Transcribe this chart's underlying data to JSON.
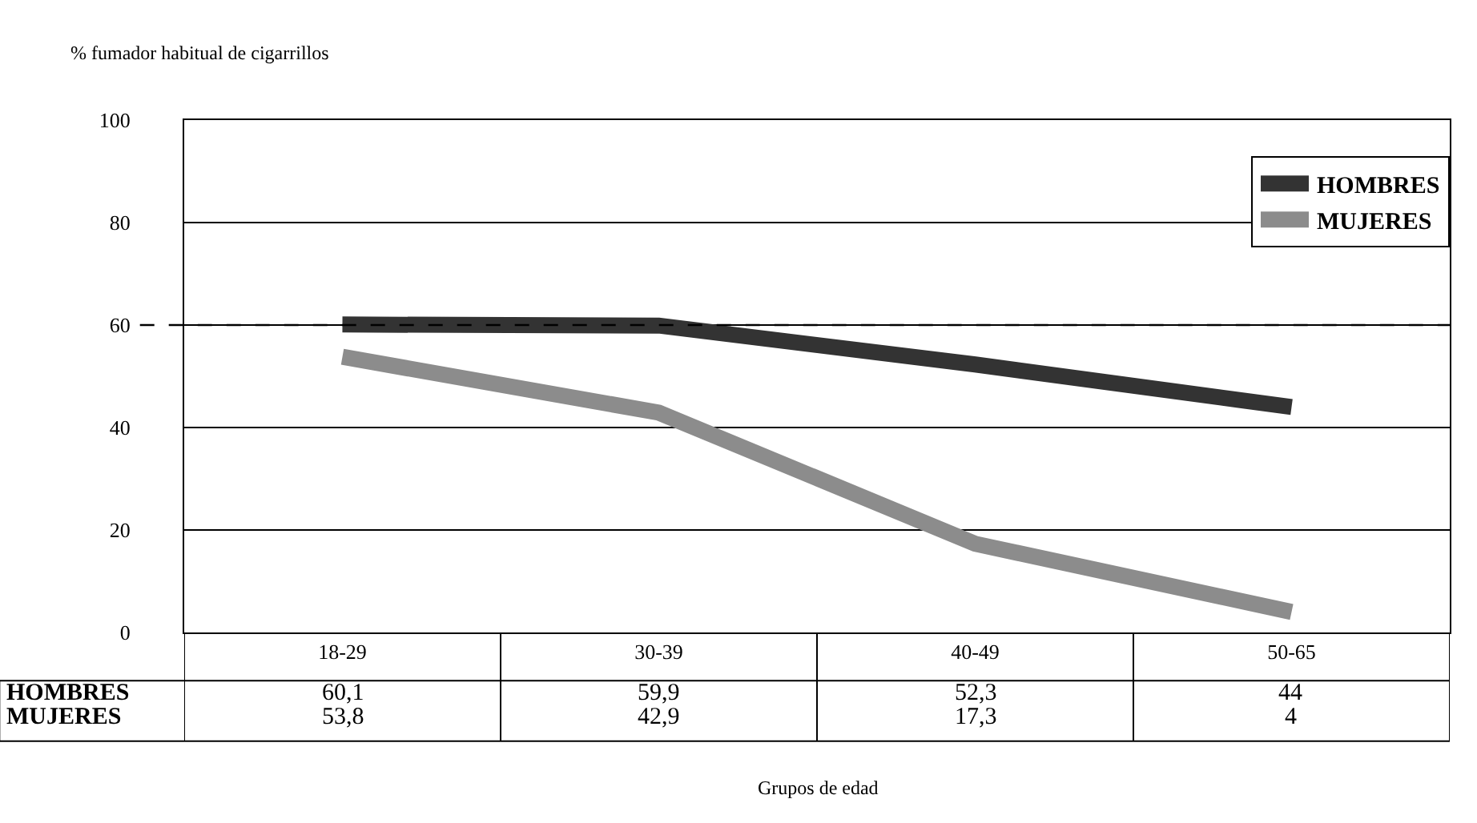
{
  "chart_data": {
    "type": "line",
    "ylabel": "% fumador habitual de cigarrillos",
    "annotations": [
      "Grupos de edad"
    ],
    "categories": [
      "18-29",
      "30-39",
      "40-49",
      "50-65"
    ],
    "series": [
      {
        "name": "HOMBRES",
        "color": "#333333",
        "values": [
          60.1,
          59.9,
          52.3,
          44
        ],
        "value_labels": [
          "60,1",
          "59,9",
          "52,3",
          "44"
        ]
      },
      {
        "name": "MUJERES",
        "color": "#8c8c8c",
        "values": [
          53.8,
          42.9,
          17.3,
          4
        ],
        "value_labels": [
          "53,8",
          "42,9",
          "17,3",
          "4"
        ]
      }
    ],
    "ylim": [
      0,
      100
    ],
    "yticks": [
      0,
      20,
      40,
      60,
      80,
      100
    ],
    "grid": "y",
    "legend": "top right",
    "marker": "none",
    "line_style": "solid",
    "ref_lines": [
      {
        "axis": "y",
        "value": 60,
        "line_style": "dashed",
        "color": "#000000"
      }
    ]
  }
}
